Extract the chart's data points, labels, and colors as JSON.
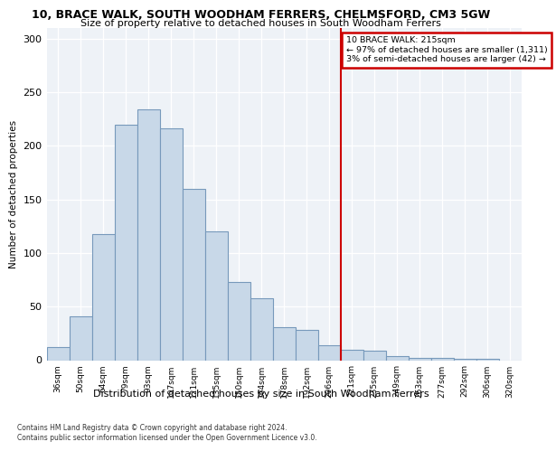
{
  "title": "10, BRACE WALK, SOUTH WOODHAM FERRERS, CHELMSFORD, CM3 5GW",
  "subtitle": "Size of property relative to detached houses in South Woodham Ferrers",
  "xlabel": "Distribution of detached houses by size in South Woodham Ferrers",
  "ylabel": "Number of detached properties",
  "categories": [
    "36sqm",
    "50sqm",
    "64sqm",
    "79sqm",
    "93sqm",
    "107sqm",
    "121sqm",
    "135sqm",
    "150sqm",
    "164sqm",
    "178sqm",
    "192sqm",
    "206sqm",
    "221sqm",
    "235sqm",
    "249sqm",
    "263sqm",
    "277sqm",
    "292sqm",
    "306sqm",
    "320sqm"
  ],
  "values": [
    12,
    41,
    118,
    220,
    234,
    216,
    160,
    120,
    73,
    58,
    31,
    28,
    14,
    10,
    9,
    4,
    2,
    2,
    1,
    1,
    0
  ],
  "bar_color": "#c8d8e8",
  "bar_edge_color": "#7799bb",
  "vline_color": "#cc0000",
  "annotation_title": "10 BRACE WALK: 215sqm",
  "annotation_line1": "← 97% of detached houses are smaller (1,311)",
  "annotation_line2": "3% of semi-detached houses are larger (42) →",
  "annotation_box_color": "#cc0000",
  "ylim": [
    0,
    310
  ],
  "yticks": [
    0,
    50,
    100,
    150,
    200,
    250,
    300
  ],
  "bg_color": "#eef2f7",
  "footer1": "Contains HM Land Registry data © Crown copyright and database right 2024.",
  "footer2": "Contains public sector information licensed under the Open Government Licence v3.0.",
  "vline_position": 12.5
}
